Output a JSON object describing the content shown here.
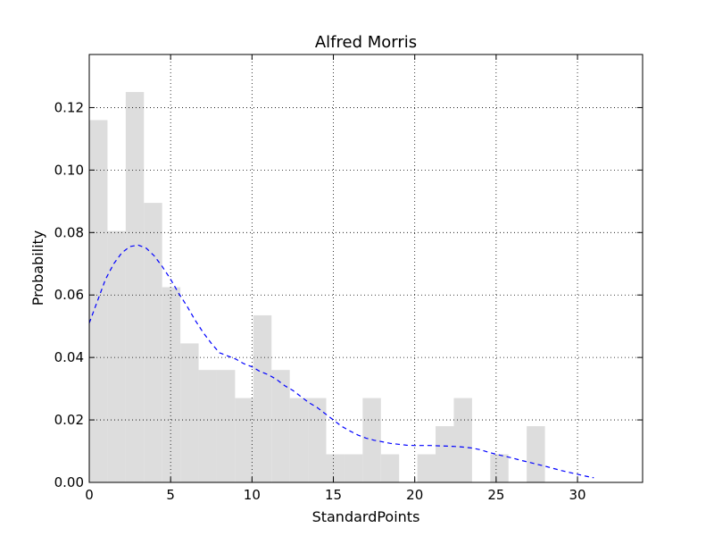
{
  "chart_data": {
    "type": "bar",
    "title": "Alfred Morris",
    "xlabel": "StandardPoints",
    "ylabel": "Probability",
    "xlim": [
      0,
      34
    ],
    "ylim": [
      0,
      0.137
    ],
    "grid": true,
    "xticks": [
      0,
      5,
      10,
      15,
      20,
      25,
      30
    ],
    "xtick_labels": [
      "0",
      "5",
      "10",
      "15",
      "20",
      "25",
      "30"
    ],
    "yticks": [
      0.0,
      0.02,
      0.04,
      0.06,
      0.08,
      0.1,
      0.12
    ],
    "ytick_labels": [
      "0.00",
      "0.02",
      "0.04",
      "0.06",
      "0.08",
      "0.10",
      "0.12"
    ],
    "histogram": {
      "color": "#dddddd",
      "bin_edges": [
        0.0,
        1.12,
        2.24,
        3.36,
        4.48,
        5.6,
        6.72,
        7.84,
        8.96,
        10.08,
        11.2,
        12.32,
        13.44,
        14.56,
        15.68,
        16.8,
        17.92,
        19.04,
        20.16,
        21.28,
        22.4,
        23.52,
        24.64,
        25.76,
        26.88,
        28.0
      ],
      "values": [
        0.116,
        0.0805,
        0.125,
        0.0895,
        0.0625,
        0.0445,
        0.036,
        0.036,
        0.027,
        0.0535,
        0.036,
        0.027,
        0.027,
        0.009,
        0.009,
        0.027,
        0.009,
        0.0,
        0.009,
        0.018,
        0.027,
        0.0,
        0.009,
        0.0,
        0.018
      ]
    },
    "kde": {
      "style": "dashed",
      "color": "#0000ff",
      "x": [
        0,
        0.5,
        1,
        1.5,
        2,
        2.5,
        3,
        3.5,
        4,
        4.5,
        5,
        5.5,
        6,
        6.5,
        7,
        7.5,
        8,
        8.5,
        9,
        9.5,
        10,
        10.5,
        11,
        11.5,
        12,
        12.5,
        13,
        13.5,
        14,
        14.5,
        15,
        15.5,
        16,
        16.5,
        17,
        17.5,
        18,
        18.5,
        19,
        19.5,
        20,
        20.5,
        21,
        21.5,
        22,
        22.5,
        23,
        23.5,
        24,
        24.5,
        25,
        25.5,
        26,
        26.5,
        27,
        27.5,
        28,
        28.5,
        29,
        29.5,
        30,
        30.5,
        31
      ],
      "y": [
        0.051,
        0.058,
        0.065,
        0.07,
        0.0735,
        0.0755,
        0.076,
        0.075,
        0.0725,
        0.069,
        0.065,
        0.0605,
        0.0565,
        0.052,
        0.048,
        0.0445,
        0.0415,
        0.0405,
        0.0395,
        0.038,
        0.037,
        0.0355,
        0.0345,
        0.033,
        0.031,
        0.0295,
        0.0275,
        0.0255,
        0.024,
        0.022,
        0.02,
        0.018,
        0.0165,
        0.0152,
        0.0142,
        0.0135,
        0.013,
        0.0125,
        0.0122,
        0.0119,
        0.0118,
        0.0118,
        0.0118,
        0.0117,
        0.0116,
        0.0115,
        0.0113,
        0.011,
        0.0105,
        0.0097,
        0.009,
        0.0084,
        0.0078,
        0.0071,
        0.0065,
        0.0058,
        0.0052,
        0.0045,
        0.0038,
        0.0032,
        0.0026,
        0.002,
        0.0015
      ]
    }
  }
}
